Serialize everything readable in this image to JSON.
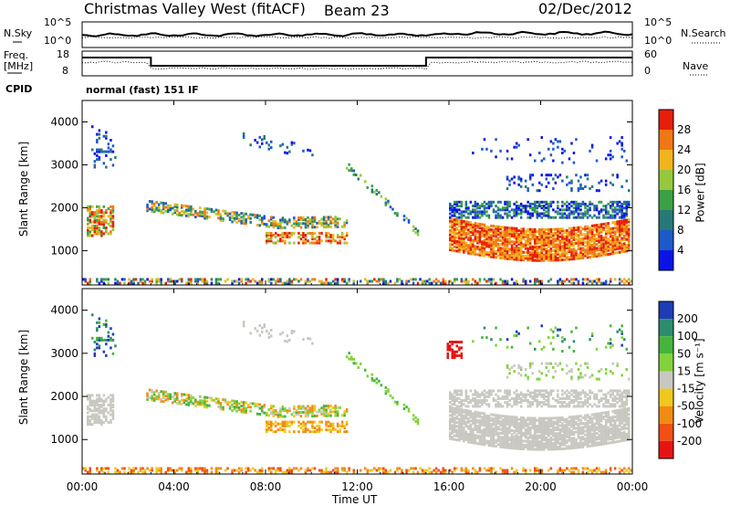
{
  "header": {
    "station": "Christmas Valley West (fitACF)",
    "beam": "Beam 23",
    "date": "02/Dec/2012"
  },
  "summary_panels": {
    "nsky_label": "N.Sky",
    "nsearch_label": "N.Search",
    "nsky_ticks": [
      "10^5",
      "10^0"
    ],
    "nsearch_ticks": [
      "10^5",
      "10^0"
    ],
    "freq_label_line1": "Freq.",
    "freq_label_line2": "[MHz]",
    "freq_ticks": [
      "18",
      "8"
    ],
    "nave_label": "Nave",
    "nave_ticks": [
      "60",
      "0"
    ],
    "cpid_label": "CPID",
    "cpid_value": "normal (fast) 151 IF"
  },
  "chart_data": [
    {
      "type": "heatmap",
      "name": "power",
      "ylabel": "Slant Range [km]",
      "y_ticks": [
        "1000",
        "2000",
        "3000",
        "4000"
      ],
      "ylim": [
        200,
        4500
      ],
      "xlim": [
        0,
        24
      ],
      "colorbar_label": "Power [dB]",
      "colorbar_ticks": [
        "4",
        "8",
        "12",
        "16",
        "20",
        "24",
        "28"
      ],
      "colorbar_colors": [
        "#0a14e6",
        "#1e5ac8",
        "#287878",
        "#3ca046",
        "#96c83c",
        "#f0b41e",
        "#f07814",
        "#e61e0a"
      ]
    },
    {
      "type": "heatmap",
      "name": "velocity",
      "ylabel": "Slant Range [km]",
      "y_ticks": [
        "1000",
        "2000",
        "3000",
        "4000"
      ],
      "ylim": [
        200,
        4500
      ],
      "xlim": [
        0,
        24
      ],
      "colorbar_label": "Velocity [m s⁻¹]",
      "colorbar_ticks": [
        "200",
        "100",
        "50",
        "15",
        "-15",
        "-50",
        "-100",
        "-200"
      ],
      "colorbar_colors": [
        "#1e3cb4",
        "#2d8c6e",
        "#46b43c",
        "#82d23c",
        "#c8c8c0",
        "#f0c81e",
        "#f08c14",
        "#f05014",
        "#e61414"
      ]
    }
  ],
  "x_axis": {
    "label": "Time UT",
    "ticks": [
      "00:00",
      "04:00",
      "08:00",
      "12:00",
      "16:00",
      "20:00",
      "00:00"
    ]
  }
}
